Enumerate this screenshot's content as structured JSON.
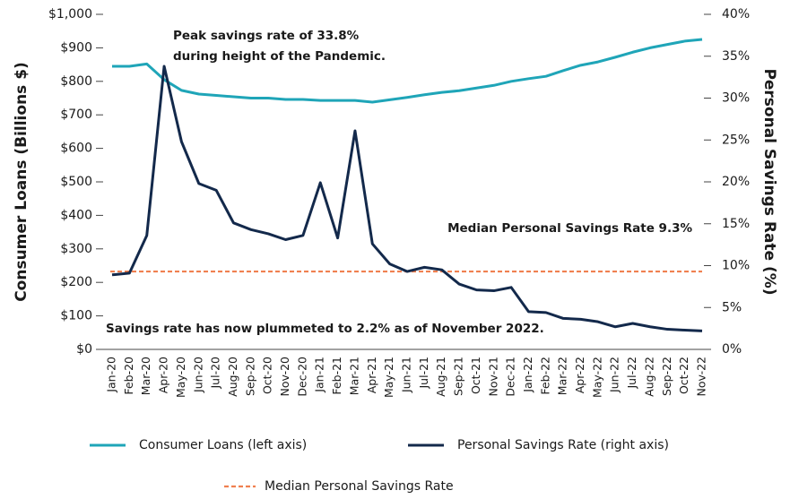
{
  "chart_data": {
    "type": "line",
    "categories": [
      "Jan-20",
      "Feb-20",
      "Mar-20",
      "Apr-20",
      "May-20",
      "Jun-20",
      "Jul-20",
      "Aug-20",
      "Sep-20",
      "Oct-20",
      "Nov-20",
      "Dec-20",
      "Jan-21",
      "Feb-21",
      "Mar-21",
      "Apr-21",
      "May-21",
      "Jun-21",
      "Jul-21",
      "Aug-21",
      "Sep-21",
      "Oct-21",
      "Nov-21",
      "Dec-21",
      "Jan-22",
      "Feb-22",
      "Mar-22",
      "Apr-22",
      "May-22",
      "Jun-22",
      "Jul-22",
      "Aug-22",
      "Sep-22",
      "Oct-22",
      "Nov-22"
    ],
    "series": [
      {
        "name": "Consumer Loans (left axis)",
        "color": "#1fa5b8",
        "values": [
          845,
          845,
          852,
          805,
          773,
          762,
          758,
          754,
          750,
          750,
          746,
          746,
          743,
          743,
          743,
          738,
          745,
          752,
          760,
          767,
          772,
          780,
          788,
          800,
          808,
          815,
          832,
          848,
          858,
          872,
          887,
          900,
          910,
          920,
          925
        ]
      },
      {
        "name": "Personal Savings Rate (right axis)",
        "color": "#13294b",
        "axis": "y2",
        "values": [
          8.9,
          9.1,
          13.6,
          33.8,
          24.8,
          19.8,
          19.0,
          15.1,
          14.3,
          13.8,
          13.1,
          13.6,
          19.9,
          13.3,
          26.1,
          12.6,
          10.2,
          9.3,
          9.8,
          9.5,
          7.8,
          7.1,
          7.0,
          7.4,
          4.5,
          4.4,
          3.7,
          3.6,
          3.3,
          2.7,
          3.1,
          2.7,
          2.4,
          2.3,
          2.2
        ]
      }
    ],
    "reference_line": {
      "name": "Median Personal Savings Rate",
      "value": 9.3,
      "axis": "y2",
      "color": "#f08050",
      "style": "dashed"
    },
    "ylabel": "Consumer Loans (Billions $)",
    "y2label": "Personal Savings Rate (%)",
    "ylim": [
      0,
      1000
    ],
    "yticks": [
      {
        "value": 0,
        "label": "$0"
      },
      {
        "value": 100,
        "label": "$100"
      },
      {
        "value": 200,
        "label": "$200"
      },
      {
        "value": 300,
        "label": "$300"
      },
      {
        "value": 400,
        "label": "$400"
      },
      {
        "value": 500,
        "label": "$500"
      },
      {
        "value": 600,
        "label": "$600"
      },
      {
        "value": 700,
        "label": "$700"
      },
      {
        "value": 800,
        "label": "$800"
      },
      {
        "value": 900,
        "label": "$900"
      },
      {
        "value": 1000,
        "label": "$1,000"
      }
    ],
    "y2lim": [
      0,
      40
    ],
    "y2ticks": [
      {
        "value": 0,
        "label": "0%"
      },
      {
        "value": 5,
        "label": "5%"
      },
      {
        "value": 10,
        "label": "10%"
      },
      {
        "value": 15,
        "label": "15%"
      },
      {
        "value": 20,
        "label": "20%"
      },
      {
        "value": 25,
        "label": "25%"
      },
      {
        "value": 30,
        "label": "30%"
      },
      {
        "value": 35,
        "label": "35%"
      },
      {
        "value": 40,
        "label": "40%"
      }
    ],
    "annotations": [
      "Peak savings rate of 33.8%",
      "during height of the Pandemic.",
      "Median Personal Savings Rate 9.3%",
      "Savings rate has now plummeted to 2.2% as of November 2022."
    ],
    "legend": "bottom"
  }
}
